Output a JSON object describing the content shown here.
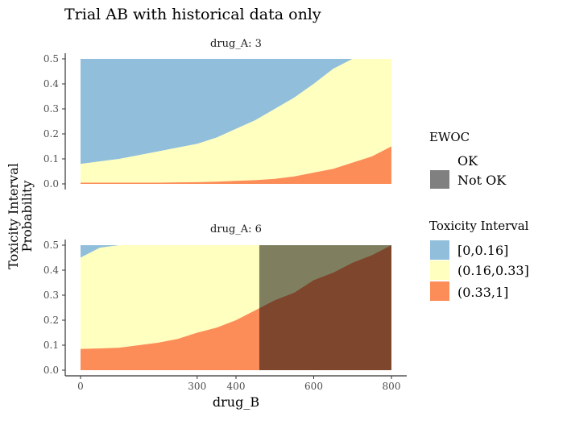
{
  "chart_data": {
    "type": "area",
    "title": "Trial AB with historical data only",
    "xlabel": "drug_B",
    "ylabel": "Toxicity Interval\nProbability",
    "ylabel_lines": [
      "Toxicity Interval",
      "Probability"
    ],
    "xlim": [
      0,
      800
    ],
    "ylim": [
      0,
      0.5
    ],
    "x_ticks": [
      0,
      300,
      400,
      600,
      800
    ],
    "x_tick_labels": [
      "0",
      "300",
      "400",
      "600",
      "800"
    ],
    "y_ticks": [
      0,
      0.1,
      0.2,
      0.3,
      0.4,
      0.5
    ],
    "y_tick_labels": [
      "0.0",
      "0.1",
      "0.2",
      "0.3",
      "0.4",
      "0.5"
    ],
    "grid": false,
    "stacked": true,
    "legend_placement": "right",
    "colors": {
      "[0,0.16]": "#91bfdb",
      "(0.16,0.33]": "#ffffbf",
      "(0.33,1]": "#fc8d59",
      "Not OK": "#000000"
    },
    "legends": {
      "ewoc": {
        "title": "EWOC",
        "entries": [
          "OK",
          "Not OK"
        ]
      },
      "interval": {
        "title": "Toxicity Interval",
        "entries": [
          "[0,0.16]",
          "(0.16,0.33]",
          "(0.33,1]"
        ]
      }
    },
    "panels": [
      {
        "strip": "drug_A: 3",
        "x": [
          0,
          50,
          100,
          150,
          200,
          250,
          300,
          350,
          400,
          450,
          500,
          550,
          600,
          650,
          700,
          750,
          800
        ],
        "p_above_0.16": [
          0.08,
          0.09,
          0.1,
          0.115,
          0.13,
          0.145,
          0.16,
          0.185,
          0.22,
          0.255,
          0.3,
          0.345,
          0.4,
          0.46,
          0.5,
          0.5,
          0.5
        ],
        "p_above_0.33": [
          0.005,
          0.005,
          0.005,
          0.005,
          0.005,
          0.006,
          0.007,
          0.009,
          0.012,
          0.015,
          0.02,
          0.03,
          0.045,
          0.06,
          0.085,
          0.11,
          0.15
        ],
        "ewoc_not_ok_from": null
      },
      {
        "strip": "drug_A: 6",
        "x": [
          0,
          50,
          100,
          150,
          200,
          250,
          300,
          350,
          400,
          450,
          500,
          550,
          600,
          650,
          700,
          750,
          800
        ],
        "p_above_0.16": [
          0.45,
          0.49,
          0.5,
          0.5,
          0.5,
          0.5,
          0.5,
          0.5,
          0.5,
          0.5,
          0.5,
          0.5,
          0.5,
          0.5,
          0.5,
          0.5,
          0.5
        ],
        "p_above_0.33": [
          0.085,
          0.087,
          0.09,
          0.1,
          0.11,
          0.125,
          0.15,
          0.17,
          0.2,
          0.24,
          0.28,
          0.31,
          0.36,
          0.39,
          0.43,
          0.46,
          0.5
        ],
        "ewoc_not_ok_from": 460
      }
    ]
  }
}
